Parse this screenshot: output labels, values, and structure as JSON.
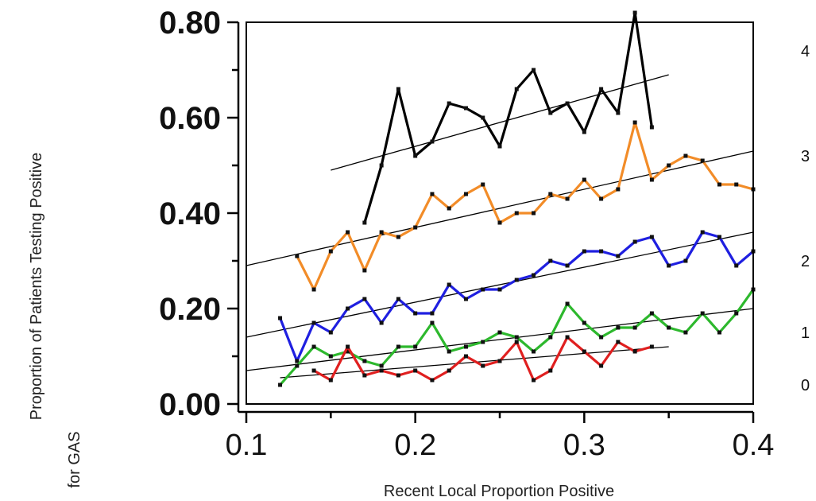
{
  "chart_data": {
    "type": "line",
    "ylabel_line1": "Proportion of Patients Testing Positive",
    "ylabel_line2": "for GAS",
    "xlabel": "Recent Local Proportion Positive",
    "xlim": [
      0.1,
      0.4
    ],
    "ylim": [
      0.0,
      0.8
    ],
    "x_ticks": [
      "0.1",
      "0.2",
      "0.3",
      "0.4"
    ],
    "y_ticks": [
      "0.00",
      "0.20",
      "0.40",
      "0.60",
      "0.80"
    ],
    "side_labels": [
      {
        "text": "4",
        "y": 0.74
      },
      {
        "text": "3",
        "y": 0.52
      },
      {
        "text": "2",
        "y": 0.3
      },
      {
        "text": "1",
        "y": 0.15
      },
      {
        "text": "0",
        "y": 0.04
      }
    ],
    "series": [
      {
        "color": "#000000",
        "x": [
          0.17,
          0.18,
          0.19,
          0.2,
          0.21,
          0.22,
          0.23,
          0.24,
          0.25,
          0.26,
          0.27,
          0.28,
          0.29,
          0.3,
          0.31,
          0.32,
          0.33,
          0.34
        ],
        "y": [
          0.38,
          0.5,
          0.66,
          0.52,
          0.55,
          0.63,
          0.62,
          0.6,
          0.54,
          0.66,
          0.7,
          0.61,
          0.63,
          0.57,
          0.66,
          0.61,
          0.82,
          0.58
        ]
      },
      {
        "color": "#F28C28",
        "x": [
          0.13,
          0.14,
          0.15,
          0.16,
          0.17,
          0.18,
          0.19,
          0.2,
          0.21,
          0.22,
          0.23,
          0.24,
          0.25,
          0.26,
          0.27,
          0.28,
          0.29,
          0.3,
          0.31,
          0.32,
          0.33,
          0.34,
          0.35,
          0.36,
          0.37,
          0.38,
          0.39,
          0.4
        ],
        "y": [
          0.31,
          0.24,
          0.32,
          0.36,
          0.28,
          0.36,
          0.35,
          0.37,
          0.44,
          0.41,
          0.44,
          0.46,
          0.38,
          0.4,
          0.4,
          0.44,
          0.43,
          0.47,
          0.43,
          0.45,
          0.59,
          0.47,
          0.5,
          0.52,
          0.51,
          0.46,
          0.46,
          0.45
        ]
      },
      {
        "color": "#1F1FE0",
        "x": [
          0.12,
          0.13,
          0.14,
          0.15,
          0.16,
          0.17,
          0.18,
          0.19,
          0.2,
          0.21,
          0.22,
          0.23,
          0.24,
          0.25,
          0.26,
          0.27,
          0.28,
          0.29,
          0.3,
          0.31,
          0.32,
          0.33,
          0.34,
          0.35,
          0.36,
          0.37,
          0.38,
          0.39,
          0.4
        ],
        "y": [
          0.18,
          0.09,
          0.17,
          0.15,
          0.2,
          0.22,
          0.17,
          0.22,
          0.19,
          0.19,
          0.25,
          0.22,
          0.24,
          0.24,
          0.26,
          0.27,
          0.3,
          0.29,
          0.32,
          0.32,
          0.31,
          0.34,
          0.35,
          0.29,
          0.3,
          0.36,
          0.35,
          0.29,
          0.32
        ]
      },
      {
        "color": "#2DB82D",
        "x": [
          0.12,
          0.13,
          0.14,
          0.15,
          0.16,
          0.17,
          0.18,
          0.19,
          0.2,
          0.21,
          0.22,
          0.23,
          0.24,
          0.25,
          0.26,
          0.27,
          0.28,
          0.29,
          0.3,
          0.31,
          0.32,
          0.33,
          0.34,
          0.35,
          0.36,
          0.37,
          0.38,
          0.39,
          0.4
        ],
        "y": [
          0.04,
          0.08,
          0.12,
          0.1,
          0.11,
          0.09,
          0.08,
          0.12,
          0.12,
          0.17,
          0.11,
          0.12,
          0.13,
          0.15,
          0.14,
          0.11,
          0.14,
          0.21,
          0.17,
          0.14,
          0.16,
          0.16,
          0.19,
          0.16,
          0.15,
          0.19,
          0.15,
          0.19,
          0.24
        ]
      },
      {
        "color": "#E01F1F",
        "x": [
          0.14,
          0.15,
          0.16,
          0.17,
          0.18,
          0.19,
          0.2,
          0.21,
          0.22,
          0.23,
          0.24,
          0.25,
          0.26,
          0.27,
          0.28,
          0.29,
          0.3,
          0.31,
          0.32,
          0.33,
          0.34
        ],
        "y": [
          0.07,
          0.05,
          0.12,
          0.06,
          0.07,
          0.06,
          0.07,
          0.05,
          0.07,
          0.1,
          0.08,
          0.09,
          0.13,
          0.05,
          0.07,
          0.14,
          0.11,
          0.08,
          0.13,
          0.11,
          0.12
        ]
      }
    ],
    "trend_lines": [
      {
        "color": "#000000",
        "x": [
          0.15,
          0.35
        ],
        "y": [
          0.49,
          0.69
        ]
      },
      {
        "color": "#000000",
        "x": [
          0.1,
          0.4
        ],
        "y": [
          0.29,
          0.53
        ]
      },
      {
        "color": "#000000",
        "x": [
          0.1,
          0.4
        ],
        "y": [
          0.14,
          0.36
        ]
      },
      {
        "color": "#000000",
        "x": [
          0.1,
          0.4
        ],
        "y": [
          0.07,
          0.2
        ]
      },
      {
        "color": "#000000",
        "x": [
          0.12,
          0.35
        ],
        "y": [
          0.055,
          0.12
        ]
      }
    ]
  }
}
